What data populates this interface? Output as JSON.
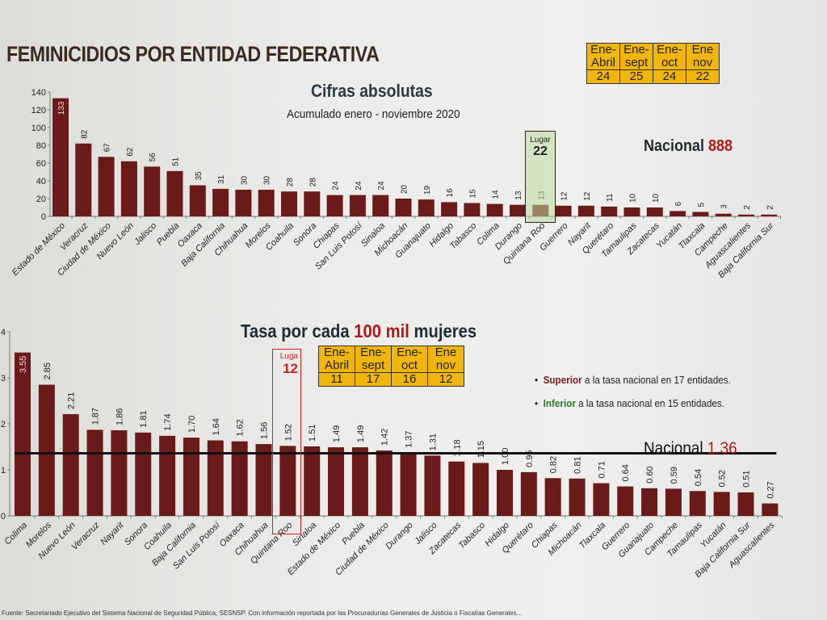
{
  "title": "FEMINICIDIOS POR ENTIDAD FEDERATIVA",
  "chart_data": [
    {
      "type": "bar",
      "title": "Cifras absolutas",
      "subtitle": "Acumulado enero - noviembre 2020",
      "xlabel": "",
      "ylabel": "",
      "ylim": [
        0,
        140
      ],
      "yticks": [
        "0",
        "20",
        "40",
        "60",
        "80",
        "100",
        "120",
        "140"
      ],
      "ytick_values": [
        0,
        20,
        40,
        60,
        80,
        100,
        120,
        140
      ],
      "categories": [
        "Estado de México",
        "Veracruz",
        "Ciudad de México",
        "Nuevo León",
        "Jalisco",
        "Puebla",
        "Oaxaca",
        "Baja California",
        "Chihuahua",
        "Morelos",
        "Coahuila",
        "Sonora",
        "Chiapas",
        "San Luis Potosí",
        "Sinaloa",
        "Michoacán",
        "Guanajuato",
        "Hidalgo",
        "Tabasco",
        "Colima",
        "Durango",
        "Quintana Roo",
        "Guerrero",
        "Nayarit",
        "Querétaro",
        "Tamaulipas",
        "Zacatecas",
        "Yucatán",
        "Tlaxcala",
        "Campeche",
        "Aguascalientes",
        "Baja California Sur"
      ],
      "values": [
        133,
        82,
        67,
        62,
        56,
        51,
        35,
        31,
        30,
        30,
        28,
        28,
        24,
        24,
        24,
        20,
        19,
        16,
        15,
        14,
        13,
        13,
        12,
        12,
        11,
        10,
        10,
        6,
        5,
        3,
        2,
        2
      ],
      "value_labels": [
        "133",
        "82",
        "67",
        "62",
        "56",
        "51",
        "35",
        "31",
        "30",
        "30",
        "28",
        "28",
        "24",
        "24",
        "24",
        "20",
        "19",
        "16",
        "15",
        "14",
        "13",
        "13",
        "12",
        "12",
        "11",
        "10",
        "10",
        "6",
        "5",
        "3",
        "2",
        "2"
      ],
      "highlight": {
        "category": "Quintana Roo",
        "label": "Lugar",
        "rank": "22"
      },
      "national": {
        "label": "Nacional",
        "value": "888"
      },
      "rank_table": {
        "headers": [
          [
            "Ene-",
            "Abril"
          ],
          [
            "Ene-",
            "sept"
          ],
          [
            "Ene-",
            "oct"
          ],
          [
            "Ene",
            "nov"
          ]
        ],
        "values": [
          "24",
          "25",
          "24",
          "22"
        ]
      },
      "bar_color": "#6b1a1a"
    },
    {
      "type": "bar",
      "title_parts": [
        "Tasa por cada ",
        "100 mil",
        " mujeres"
      ],
      "xlabel": "",
      "ylabel": "",
      "ylim": [
        0,
        4
      ],
      "yticks": [
        "0",
        "1",
        "2",
        "3",
        "4"
      ],
      "ytick_values": [
        0,
        1,
        2,
        3,
        4
      ],
      "categories": [
        "Colima",
        "Morelos",
        "Nuevo León",
        "Veracruz",
        "Nayarit",
        "Sonora",
        "Coahuila",
        "Baja California",
        "San Luis Potosí",
        "Oaxaca",
        "Chihuahua",
        "Quintana Roo",
        "Sinaloa",
        "Estado de México",
        "Puebla",
        "Ciudad de México",
        "Durango",
        "Jalisco",
        "Zacatecas",
        "Tabasco",
        "Hidalgo",
        "Querétaro",
        "Chiapas",
        "Michoacán",
        "Tlaxcala",
        "Guerrero",
        "Guanajuato",
        "Campeche",
        "Tamaulipas",
        "Yucatán",
        "Baja California Sur",
        "Aguascalientes"
      ],
      "values": [
        3.55,
        2.85,
        2.21,
        1.87,
        1.86,
        1.81,
        1.74,
        1.7,
        1.64,
        1.62,
        1.56,
        1.52,
        1.51,
        1.49,
        1.49,
        1.42,
        1.37,
        1.31,
        1.18,
        1.15,
        1.0,
        0.95,
        0.82,
        0.81,
        0.71,
        0.64,
        0.6,
        0.59,
        0.54,
        0.52,
        0.51,
        0.27
      ],
      "value_labels": [
        "3.55",
        "2.85",
        "2.21",
        "1.87",
        "1.86",
        "1.81",
        "1.74",
        "1.70",
        "1.64",
        "1.62",
        "1.56",
        "1.52",
        "1.51",
        "1.49",
        "1.49",
        "1.42",
        "1.37",
        "1.31",
        "1.18",
        "1.15",
        "1.00",
        "0.95",
        "0.82",
        "0.81",
        "0.71",
        "0.64",
        "0.60",
        "0.59",
        "0.54",
        "0.52",
        "0.51",
        "0.27"
      ],
      "highlight": {
        "category": "Quintana Roo",
        "label": "Luga",
        "rank": "12"
      },
      "national": {
        "label": "Nacional",
        "value": "1.36",
        "line_value": 1.36
      },
      "rank_table": {
        "headers": [
          [
            "Ene-",
            "Abril"
          ],
          [
            "Ene-",
            "sept"
          ],
          [
            "Ene-",
            "oct"
          ],
          [
            "Ene",
            "nov"
          ]
        ],
        "values": [
          "11",
          "17",
          "16",
          "12"
        ]
      },
      "notes": [
        {
          "bold": "Superior",
          "text": " a la tasa nacional en 17 entidades."
        },
        {
          "bold": "Inferior",
          "text": " a la tasa nacional en 15 entidades."
        }
      ],
      "bar_color": "#6b1a1a"
    }
  ],
  "footer": "Fuente: Secretariado Ejecutivo del Sistema Nacional de Seguridad Pública, SESNSP. Con información reportada por las Procuradurías Generales de Justicia o Fiscalías Generales..."
}
